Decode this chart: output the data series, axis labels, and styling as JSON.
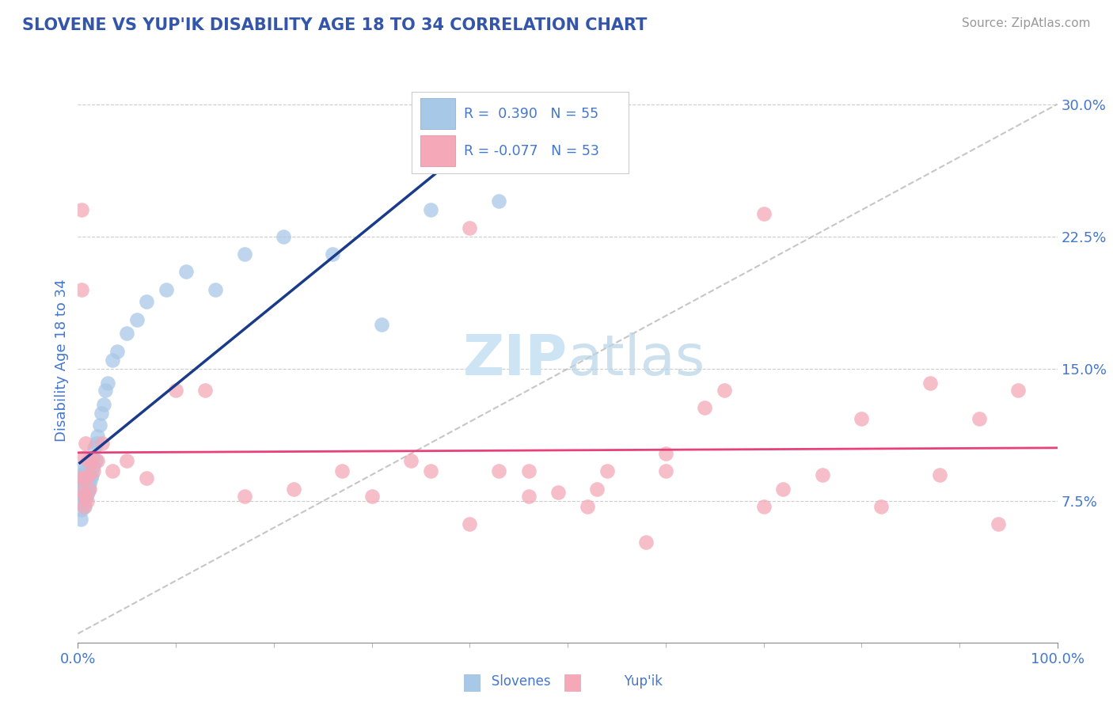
{
  "title": "SLOVENE VS YUP'IK DISABILITY AGE 18 TO 34 CORRELATION CHART",
  "source_text": "Source: ZipAtlas.com",
  "ylabel_label": "Disability Age 18 to 34",
  "xlim": [
    0.0,
    1.0
  ],
  "ylim": [
    -0.005,
    0.315
  ],
  "slovene_color": "#a8c8e8",
  "yupik_color": "#f4a8b8",
  "slovene_line_color": "#1a3a8a",
  "yupik_line_color": "#e8407a",
  "dashed_line_color": "#c0c0c0",
  "legend_text_color": "#4477cc",
  "title_color": "#3355aa",
  "source_color": "#999999",
  "watermark_color": "#cce4f4",
  "R_slovene": 0.39,
  "N_slovene": 55,
  "R_yupik": -0.077,
  "N_yupik": 53,
  "slovene_x": [
    0.002,
    0.003,
    0.003,
    0.004,
    0.004,
    0.005,
    0.005,
    0.005,
    0.006,
    0.006,
    0.006,
    0.007,
    0.007,
    0.007,
    0.007,
    0.008,
    0.008,
    0.008,
    0.009,
    0.009,
    0.009,
    0.01,
    0.01,
    0.011,
    0.011,
    0.012,
    0.012,
    0.013,
    0.013,
    0.014,
    0.015,
    0.016,
    0.017,
    0.018,
    0.019,
    0.02,
    0.022,
    0.024,
    0.026,
    0.028,
    0.03,
    0.035,
    0.04,
    0.05,
    0.06,
    0.07,
    0.09,
    0.11,
    0.14,
    0.17,
    0.21,
    0.26,
    0.31,
    0.36,
    0.43
  ],
  "slovene_y": [
    0.085,
    0.075,
    0.065,
    0.08,
    0.07,
    0.09,
    0.085,
    0.095,
    0.075,
    0.082,
    0.088,
    0.078,
    0.072,
    0.083,
    0.092,
    0.076,
    0.082,
    0.088,
    0.079,
    0.085,
    0.091,
    0.08,
    0.087,
    0.082,
    0.09,
    0.085,
    0.092,
    0.088,
    0.095,
    0.09,
    0.1,
    0.095,
    0.105,
    0.098,
    0.108,
    0.112,
    0.118,
    0.125,
    0.13,
    0.138,
    0.142,
    0.155,
    0.16,
    0.17,
    0.178,
    0.188,
    0.195,
    0.205,
    0.195,
    0.215,
    0.225,
    0.215,
    0.175,
    0.24,
    0.245
  ],
  "yupik_x": [
    0.003,
    0.004,
    0.004,
    0.005,
    0.006,
    0.006,
    0.007,
    0.007,
    0.008,
    0.009,
    0.01,
    0.011,
    0.012,
    0.014,
    0.016,
    0.02,
    0.025,
    0.035,
    0.05,
    0.07,
    0.1,
    0.13,
    0.17,
    0.22,
    0.27,
    0.34,
    0.4,
    0.46,
    0.52,
    0.58,
    0.64,
    0.7,
    0.76,
    0.82,
    0.88,
    0.94,
    0.43,
    0.49,
    0.54,
    0.6,
    0.66,
    0.72,
    0.3,
    0.36,
    0.4,
    0.46,
    0.53,
    0.6,
    0.7,
    0.8,
    0.87,
    0.92,
    0.96
  ],
  "yupik_y": [
    0.088,
    0.24,
    0.195,
    0.08,
    0.072,
    0.1,
    0.088,
    0.078,
    0.108,
    0.075,
    0.098,
    0.09,
    0.082,
    0.098,
    0.092,
    0.098,
    0.108,
    0.092,
    0.098,
    0.088,
    0.138,
    0.138,
    0.078,
    0.082,
    0.092,
    0.098,
    0.062,
    0.078,
    0.072,
    0.052,
    0.128,
    0.072,
    0.09,
    0.072,
    0.09,
    0.062,
    0.092,
    0.08,
    0.092,
    0.102,
    0.138,
    0.082,
    0.078,
    0.092,
    0.23,
    0.092,
    0.082,
    0.092,
    0.238,
    0.122,
    0.142,
    0.122,
    0.138
  ]
}
